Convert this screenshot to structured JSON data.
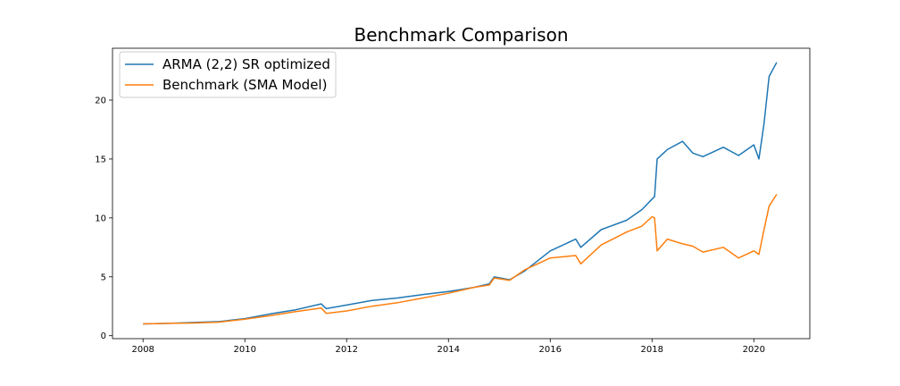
{
  "chart_data": {
    "type": "line",
    "title": "Benchmark Comparison",
    "xlabel": "",
    "ylabel": "",
    "xlim": [
      2007.4,
      2021.1
    ],
    "ylim": [
      -0.25,
      24.4
    ],
    "x_ticks": [
      2008,
      2010,
      2012,
      2014,
      2016,
      2018,
      2020
    ],
    "x_tick_labels": [
      "2008",
      "2010",
      "2012",
      "2014",
      "2016",
      "2018",
      "2020"
    ],
    "y_ticks": [
      0,
      5,
      10,
      15,
      20
    ],
    "y_tick_labels": [
      "0",
      "5",
      "10",
      "15",
      "20"
    ],
    "grid": false,
    "legend_position": "top-left",
    "series": [
      {
        "name": "ARMA (2,2) SR optimized",
        "color": "#1f77b4",
        "points": [
          [
            2008.0,
            1.0
          ],
          [
            2008.5,
            1.05
          ],
          [
            2009.0,
            1.12
          ],
          [
            2009.5,
            1.2
          ],
          [
            2010.0,
            1.45
          ],
          [
            2010.5,
            1.85
          ],
          [
            2011.0,
            2.2
          ],
          [
            2011.5,
            2.7
          ],
          [
            2011.6,
            2.3
          ],
          [
            2012.0,
            2.6
          ],
          [
            2012.5,
            3.0
          ],
          [
            2013.0,
            3.2
          ],
          [
            2013.5,
            3.5
          ],
          [
            2014.0,
            3.75
          ],
          [
            2014.5,
            4.1
          ],
          [
            2014.8,
            4.4
          ],
          [
            2014.9,
            5.0
          ],
          [
            2015.2,
            4.75
          ],
          [
            2015.5,
            5.5
          ],
          [
            2016.0,
            7.2
          ],
          [
            2016.5,
            8.2
          ],
          [
            2016.6,
            7.5
          ],
          [
            2017.0,
            9.0
          ],
          [
            2017.5,
            9.8
          ],
          [
            2017.8,
            10.7
          ],
          [
            2018.0,
            11.6
          ],
          [
            2018.05,
            11.8
          ],
          [
            2018.1,
            15.0
          ],
          [
            2018.3,
            15.8
          ],
          [
            2018.6,
            16.5
          ],
          [
            2018.8,
            15.5
          ],
          [
            2019.0,
            15.2
          ],
          [
            2019.4,
            16.0
          ],
          [
            2019.7,
            15.3
          ],
          [
            2020.0,
            16.2
          ],
          [
            2020.1,
            15.0
          ],
          [
            2020.2,
            18.0
          ],
          [
            2020.3,
            22.0
          ],
          [
            2020.45,
            23.2
          ]
        ]
      },
      {
        "name": "Benchmark (SMA Model)",
        "color": "#ff7f0e",
        "points": [
          [
            2008.0,
            1.0
          ],
          [
            2008.5,
            1.05
          ],
          [
            2009.0,
            1.08
          ],
          [
            2009.5,
            1.15
          ],
          [
            2010.0,
            1.4
          ],
          [
            2010.5,
            1.7
          ],
          [
            2011.0,
            2.05
          ],
          [
            2011.5,
            2.35
          ],
          [
            2011.6,
            1.9
          ],
          [
            2012.0,
            2.1
          ],
          [
            2012.5,
            2.5
          ],
          [
            2013.0,
            2.8
          ],
          [
            2013.5,
            3.2
          ],
          [
            2014.0,
            3.6
          ],
          [
            2014.5,
            4.1
          ],
          [
            2014.8,
            4.3
          ],
          [
            2014.9,
            4.9
          ],
          [
            2015.2,
            4.7
          ],
          [
            2015.5,
            5.6
          ],
          [
            2016.0,
            6.6
          ],
          [
            2016.5,
            6.8
          ],
          [
            2016.6,
            6.1
          ],
          [
            2017.0,
            7.7
          ],
          [
            2017.5,
            8.8
          ],
          [
            2017.8,
            9.3
          ],
          [
            2018.0,
            10.1
          ],
          [
            2018.05,
            10.0
          ],
          [
            2018.1,
            7.2
          ],
          [
            2018.3,
            8.2
          ],
          [
            2018.6,
            7.8
          ],
          [
            2018.8,
            7.6
          ],
          [
            2019.0,
            7.1
          ],
          [
            2019.4,
            7.5
          ],
          [
            2019.7,
            6.6
          ],
          [
            2020.0,
            7.2
          ],
          [
            2020.1,
            6.9
          ],
          [
            2020.2,
            9.0
          ],
          [
            2020.3,
            11.0
          ],
          [
            2020.45,
            12.0
          ]
        ]
      }
    ]
  }
}
